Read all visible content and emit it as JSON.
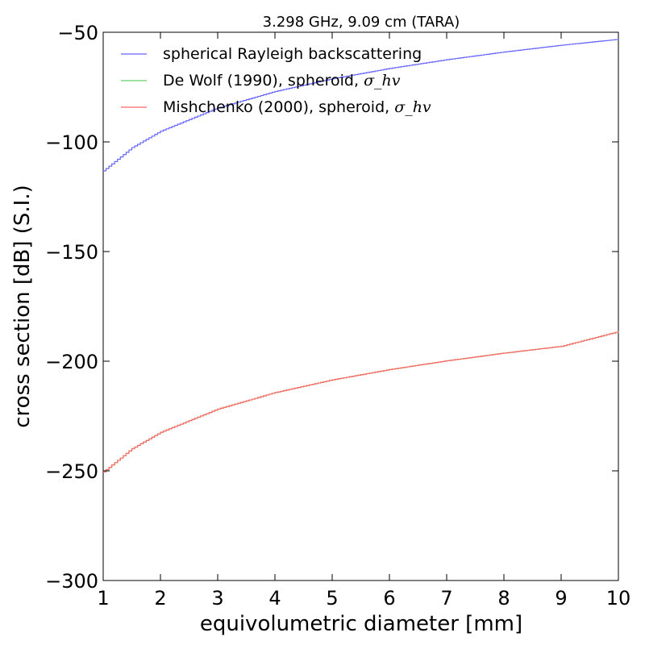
{
  "chart_data": {
    "type": "line",
    "title": "3.298 GHz, 9.09 cm (TARA)",
    "xlabel": "equivolumetric diameter [mm]",
    "ylabel": "cross section [dB] (S.I.)",
    "xlim": [
      1,
      10
    ],
    "ylim": [
      -300,
      -50
    ],
    "xticks": [
      1,
      2,
      3,
      4,
      5,
      6,
      7,
      8,
      9,
      10
    ],
    "yticks": [
      -300,
      -250,
      -200,
      -150,
      -100,
      -50
    ],
    "grid": false,
    "legend_position": "top-left",
    "series": [
      {
        "name": "spherical Rayleigh backscattering",
        "color": "#6666ff",
        "x": [
          1,
          1.5,
          2,
          3,
          4,
          5,
          6,
          7,
          8,
          9,
          10
        ],
        "values": [
          -113.2,
          -102.6,
          -95.1,
          -84.5,
          -77.0,
          -71.2,
          -66.5,
          -62.5,
          -59.0,
          -55.9,
          -53.2
        ]
      },
      {
        "name": "De Wolf (1990), spheroid, ",
        "name_sub": "σ_hv",
        "color": "#66cc66",
        "x": [
          1,
          1.5,
          2,
          3,
          4,
          5,
          6,
          7,
          8,
          9,
          10
        ],
        "values": [
          -250.5,
          -239.9,
          -232.4,
          -221.8,
          -214.3,
          -208.5,
          -203.8,
          -199.8,
          -196.3,
          -193.2,
          -186.5
        ]
      },
      {
        "name": "Mishchenko (2000), spheroid, ",
        "name_sub": "σ_hv",
        "color": "#ff6666",
        "x": [
          1,
          1.5,
          2,
          3,
          4,
          5,
          6,
          7,
          8,
          9,
          10
        ],
        "values": [
          -250.5,
          -239.9,
          -232.4,
          -221.8,
          -214.3,
          -208.5,
          -203.8,
          -199.8,
          -196.3,
          -193.2,
          -186.5
        ]
      }
    ]
  }
}
